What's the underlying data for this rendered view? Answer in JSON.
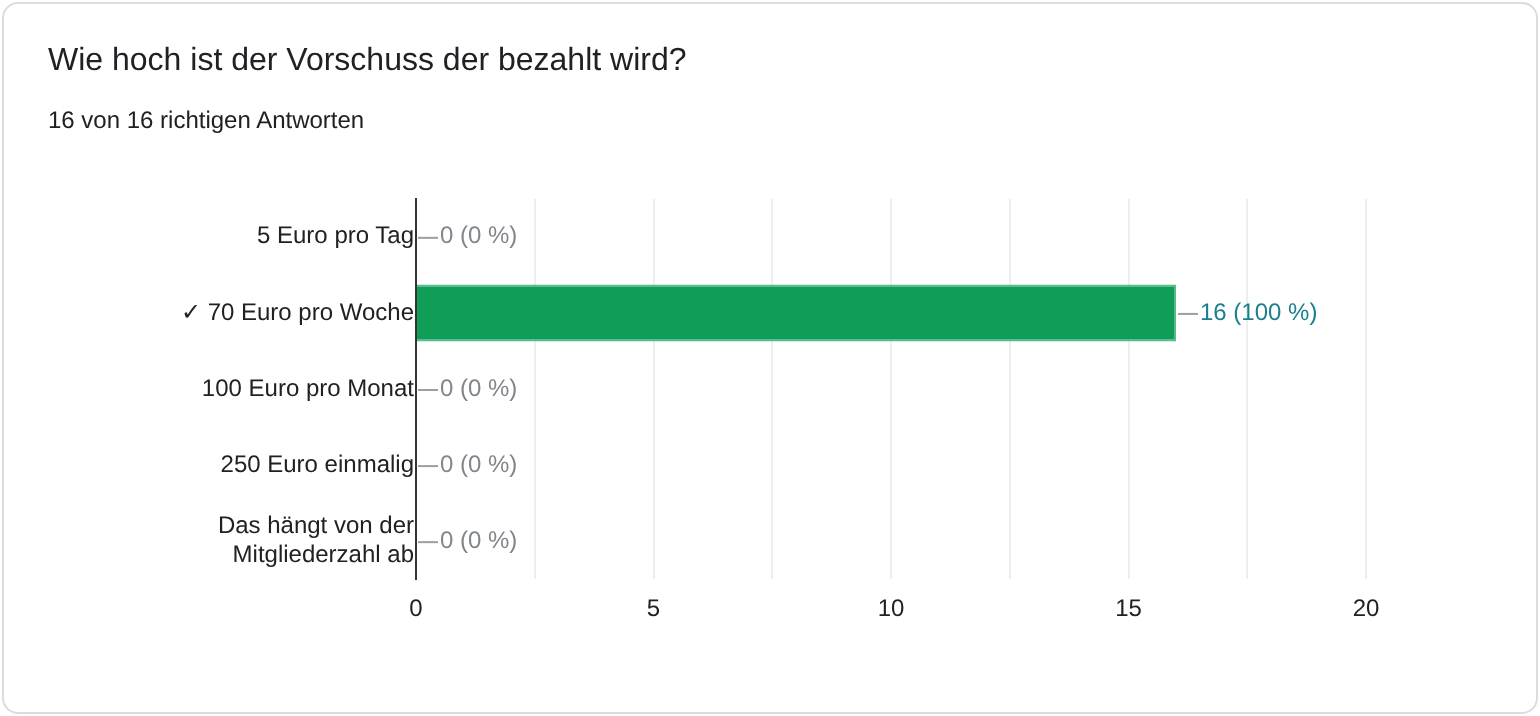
{
  "chart_data": {
    "type": "bar",
    "orientation": "horizontal",
    "title": "Wie hoch ist der Vorschuss der bezahlt wird?",
    "subtitle": "16 von 16 richtigen Antworten",
    "categories": [
      "5 Euro pro Tag",
      "✓ 70 Euro pro Woche",
      "100 Euro pro Monat",
      "250 Euro einmalig",
      "Das hängt von der Mitgliederzahl ab"
    ],
    "values": [
      0,
      16,
      0,
      0,
      0
    ],
    "value_labels": [
      "0 (0 %)",
      "16 (100 %)",
      "0 (0 %)",
      "0 (0 %)",
      "0 (0 %)"
    ],
    "color": "#0f9d58",
    "xlim": [
      0,
      20
    ],
    "xticks": [
      0,
      {
        "value": 2.5,
        "label": null
      },
      5,
      {
        "value": 7.5,
        "label": null
      },
      10,
      {
        "value": 12.5,
        "label": null
      },
      15,
      {
        "value": 17.5,
        "label": null
      },
      20
    ],
    "grid": "x",
    "legend": false
  }
}
